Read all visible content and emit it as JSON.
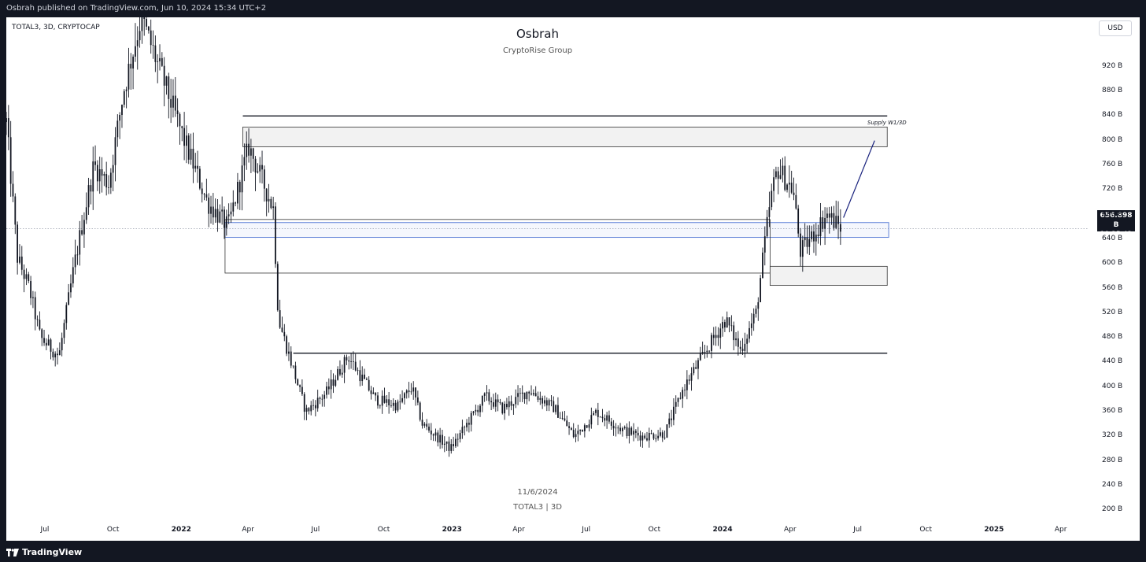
{
  "header": {
    "publisher_line": "Osbrah published on TradingView.com, Jun 10, 2024 15:34 UTC+2"
  },
  "footer": {
    "brand": "TradingView"
  },
  "legend": {
    "symbol_line": "TOTAL3, 3D, CRYPTOCAP",
    "currency": "USD"
  },
  "watermark": {
    "date": "11/6/2024",
    "symbol": "TOTAL3 | 3D"
  },
  "price_label": {
    "price": "656.898 B",
    "countdown": "10:25:42"
  },
  "colors": {
    "candle": "#131722",
    "zone_blue": "#5b7fd6",
    "arrow": "#1a237e",
    "zone_fill": "#f2f2f2"
  },
  "chart_data": {
    "type": "candlestick",
    "title": "Osbrah",
    "subtitle": "CryptoRise Group",
    "x_axis": {
      "range": [
        "2021-05-10",
        "2025-04-30"
      ],
      "ticks": [
        {
          "label": "Jul",
          "date": "2021-07-01",
          "bold": false
        },
        {
          "label": "Oct",
          "date": "2021-10-01",
          "bold": false
        },
        {
          "label": "2022",
          "date": "2022-01-01",
          "bold": true
        },
        {
          "label": "Apr",
          "date": "2022-04-01",
          "bold": false
        },
        {
          "label": "Jul",
          "date": "2022-07-01",
          "bold": false
        },
        {
          "label": "Oct",
          "date": "2022-10-01",
          "bold": false
        },
        {
          "label": "2023",
          "date": "2023-01-01",
          "bold": true
        },
        {
          "label": "Apr",
          "date": "2023-04-01",
          "bold": false
        },
        {
          "label": "Jul",
          "date": "2023-07-01",
          "bold": false
        },
        {
          "label": "Oct",
          "date": "2023-10-01",
          "bold": false
        },
        {
          "label": "2024",
          "date": "2024-01-01",
          "bold": true
        },
        {
          "label": "Apr",
          "date": "2024-04-01",
          "bold": false
        },
        {
          "label": "Jul",
          "date": "2024-07-01",
          "bold": false
        },
        {
          "label": "Oct",
          "date": "2024-10-01",
          "bold": false
        },
        {
          "label": "2025",
          "date": "2025-01-01",
          "bold": true
        },
        {
          "label": "Apr",
          "date": "2025-04-01",
          "bold": false
        }
      ]
    },
    "y_axis": {
      "unit": "B",
      "range": [
        177,
        1000
      ],
      "ticks": [
        200,
        240,
        280,
        320,
        360,
        400,
        440,
        480,
        520,
        560,
        600,
        640,
        680,
        720,
        760,
        800,
        840,
        880,
        920
      ],
      "tick_labels": [
        "200 B",
        "240 B",
        "280 B",
        "320 B",
        "360 B",
        "400 B",
        "440 B",
        "480 B",
        "520 B",
        "560 B",
        "600 B",
        "640 B",
        "680 B",
        "720 B",
        "760 B",
        "800 B",
        "840 B",
        "880 B",
        "920 B"
      ]
    },
    "current_price": 656.898,
    "price_path": [
      {
        "date": "2021-05-10",
        "value": 830
      },
      {
        "date": "2021-05-25",
        "value": 610
      },
      {
        "date": "2021-06-10",
        "value": 560
      },
      {
        "date": "2021-06-25",
        "value": 480
      },
      {
        "date": "2021-07-20",
        "value": 450
      },
      {
        "date": "2021-08-10",
        "value": 600
      },
      {
        "date": "2021-09-05",
        "value": 760
      },
      {
        "date": "2021-09-25",
        "value": 730
      },
      {
        "date": "2021-10-15",
        "value": 880
      },
      {
        "date": "2021-11-08",
        "value": 1000
      },
      {
        "date": "2021-12-10",
        "value": 890
      },
      {
        "date": "2022-01-05",
        "value": 800
      },
      {
        "date": "2022-02-05",
        "value": 700
      },
      {
        "date": "2022-03-05",
        "value": 660
      },
      {
        "date": "2022-04-02",
        "value": 790
      },
      {
        "date": "2022-05-05",
        "value": 690
      },
      {
        "date": "2022-05-12",
        "value": 510
      },
      {
        "date": "2022-06-18",
        "value": 360
      },
      {
        "date": "2022-07-15",
        "value": 390
      },
      {
        "date": "2022-08-14",
        "value": 450
      },
      {
        "date": "2022-09-20",
        "value": 380
      },
      {
        "date": "2022-10-20",
        "value": 370
      },
      {
        "date": "2022-11-08",
        "value": 400
      },
      {
        "date": "2022-11-22",
        "value": 340
      },
      {
        "date": "2022-12-30",
        "value": 300
      },
      {
        "date": "2023-02-15",
        "value": 385
      },
      {
        "date": "2023-03-10",
        "value": 365
      },
      {
        "date": "2023-04-15",
        "value": 395
      },
      {
        "date": "2023-05-20",
        "value": 365
      },
      {
        "date": "2023-06-15",
        "value": 320
      },
      {
        "date": "2023-07-15",
        "value": 360
      },
      {
        "date": "2023-08-20",
        "value": 330
      },
      {
        "date": "2023-09-15",
        "value": 320
      },
      {
        "date": "2023-10-15",
        "value": 325
      },
      {
        "date": "2023-11-10",
        "value": 400
      },
      {
        "date": "2023-12-10",
        "value": 460
      },
      {
        "date": "2024-01-05",
        "value": 510
      },
      {
        "date": "2024-01-25",
        "value": 460
      },
      {
        "date": "2024-02-15",
        "value": 520
      },
      {
        "date": "2024-03-05",
        "value": 700
      },
      {
        "date": "2024-03-15",
        "value": 755
      },
      {
        "date": "2024-04-05",
        "value": 720
      },
      {
        "date": "2024-04-15",
        "value": 620
      },
      {
        "date": "2024-05-01",
        "value": 645
      },
      {
        "date": "2024-05-20",
        "value": 680
      },
      {
        "date": "2024-06-10",
        "value": 657
      }
    ],
    "annotations": {
      "horizontal_lines": [
        {
          "value": 840,
          "from": "2022-03-25",
          "to": "2024-08-10"
        },
        {
          "value": 455,
          "from": "2022-06-01",
          "to": "2024-08-10"
        }
      ],
      "zones": [
        {
          "name": "supply",
          "top": 822,
          "bottom": 790,
          "from": "2022-03-25",
          "to": "2024-08-10",
          "style": "gray"
        },
        {
          "name": "blue-range",
          "top": 667,
          "bottom": 643,
          "from": "2022-03-01",
          "to": "2024-08-12",
          "style": "blue"
        },
        {
          "name": "range-outline",
          "top": 672,
          "bottom": 585,
          "from": "2022-03-01",
          "to": "2024-03-05",
          "style": "outline"
        },
        {
          "name": "demand",
          "top": 596,
          "bottom": 565,
          "from": "2024-03-05",
          "to": "2024-08-10",
          "style": "gray"
        }
      ],
      "supply_text": "Supply W1/3D"
    }
  }
}
